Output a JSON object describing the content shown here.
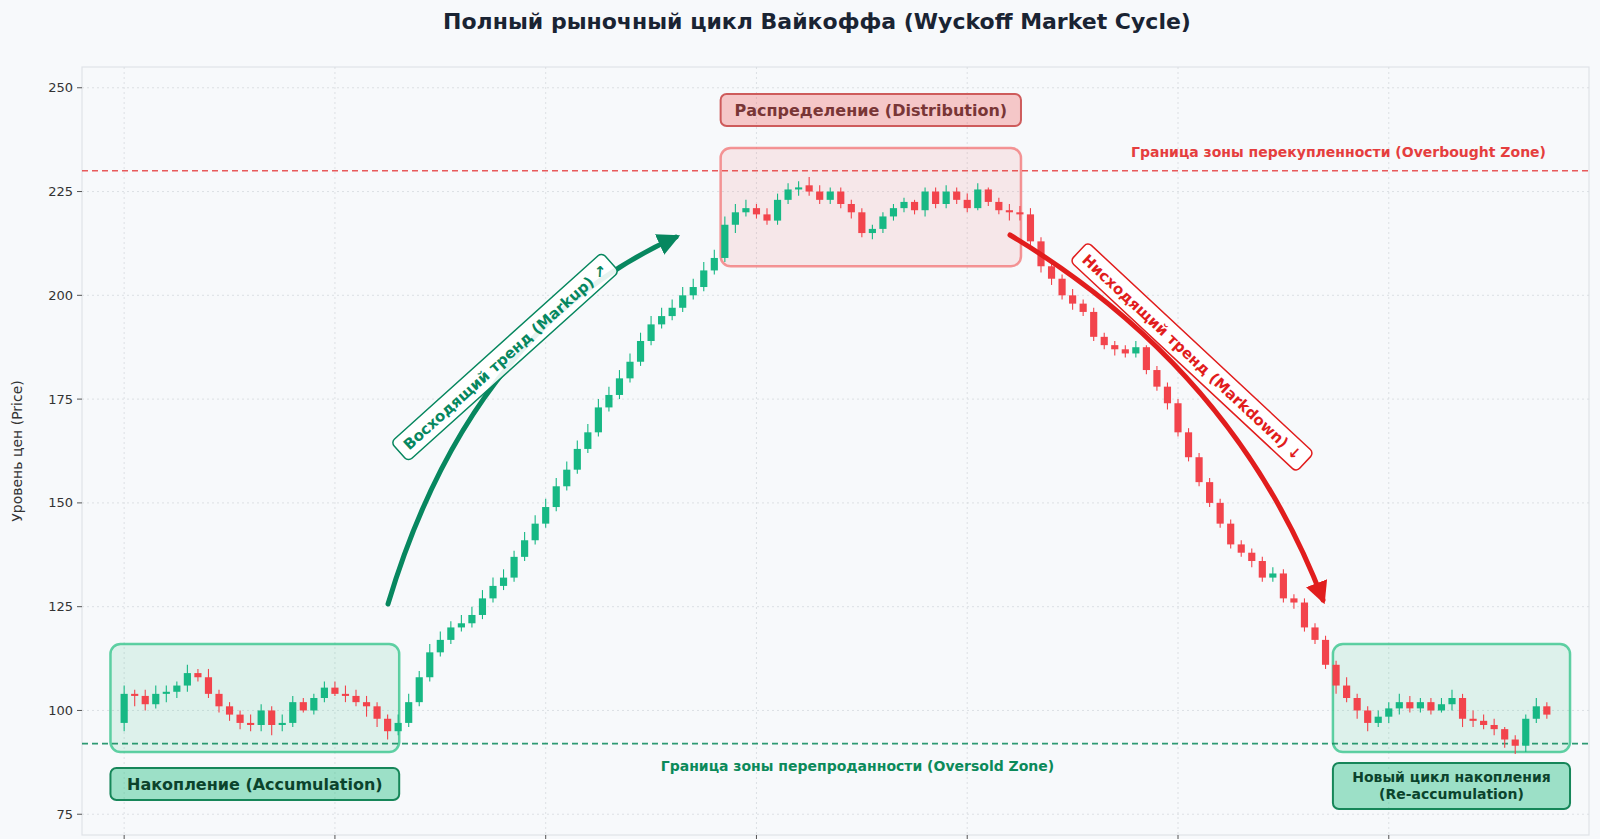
{
  "chart_data": {
    "type": "candlestick",
    "title": "Полный рыночный цикл Вайкоффа (Wyckoff Market Cycle)",
    "y_label": "Уровень цен (Price)",
    "xlim": [
      -4,
      139
    ],
    "ylim": [
      70,
      255
    ],
    "xticks": [
      0,
      20,
      40,
      60,
      80,
      100,
      120
    ],
    "yticks": [
      75,
      100,
      125,
      150,
      175,
      200,
      225,
      250
    ],
    "grid": true,
    "tick_labels": "y",
    "x": [
      0,
      1,
      2,
      3,
      4,
      5,
      6,
      7,
      8,
      9,
      10,
      11,
      12,
      13,
      14,
      15,
      16,
      17,
      18,
      19,
      20,
      21,
      22,
      23,
      24,
      25,
      26,
      27,
      28,
      29,
      30,
      31,
      32,
      33,
      34,
      35,
      36,
      37,
      38,
      39,
      40,
      41,
      42,
      43,
      44,
      45,
      46,
      47,
      48,
      49,
      50,
      51,
      52,
      53,
      54,
      55,
      56,
      57,
      58,
      59,
      60,
      61,
      62,
      63,
      64,
      65,
      66,
      67,
      68,
      69,
      70,
      71,
      72,
      73,
      74,
      75,
      76,
      77,
      78,
      79,
      80,
      81,
      82,
      83,
      84,
      85,
      86,
      87,
      88,
      89,
      90,
      91,
      92,
      93,
      94,
      95,
      96,
      97,
      98,
      99,
      100,
      101,
      102,
      103,
      104,
      105,
      106,
      107,
      108,
      109,
      110,
      111,
      112,
      113,
      114,
      115,
      116,
      117,
      118,
      119,
      120,
      121,
      122,
      123,
      124,
      125,
      126,
      127,
      128,
      129,
      130,
      131,
      132,
      133,
      134,
      135
    ],
    "open": [
      97,
      104,
      103.5,
      101.5,
      104,
      104.5,
      106,
      109,
      108,
      104,
      101,
      99,
      97,
      96.5,
      100,
      96.5,
      97,
      102,
      100,
      103,
      105.5,
      104,
      103.5,
      102,
      101,
      98,
      95,
      97,
      102,
      108,
      114,
      117,
      120,
      121,
      123,
      127,
      130,
      132,
      137,
      141,
      145,
      149,
      154,
      158,
      163,
      167,
      173,
      176,
      180,
      184,
      189,
      193,
      195,
      197,
      200,
      202,
      206,
      209,
      217,
      220,
      221,
      219.5,
      218,
      223,
      225.5,
      226.5,
      225,
      223,
      225,
      222,
      220,
      215,
      216,
      219,
      221,
      222.5,
      220.5,
      225,
      222,
      225,
      223,
      221,
      225.5,
      222.5,
      220.5,
      220,
      219.5,
      213,
      207,
      204,
      200,
      198,
      196,
      190,
      188,
      187,
      186,
      187.5,
      182,
      178,
      174,
      167,
      161,
      155,
      150,
      145,
      140,
      138,
      136,
      132,
      133,
      127,
      126,
      120,
      117,
      111,
      106,
      103,
      100,
      97,
      98.5,
      100.5,
      102,
      100.5,
      102,
      100,
      101.5,
      103,
      98,
      97.5,
      96.5,
      95.5,
      93,
      91.5,
      98,
      101
    ],
    "high": [
      106,
      105,
      105,
      106,
      106,
      107,
      111,
      110,
      110,
      105,
      102,
      100,
      99,
      101.5,
      101,
      99,
      103.5,
      103,
      104,
      107,
      107,
      106,
      105,
      103.5,
      102,
      99,
      99,
      104,
      109.5,
      116,
      119,
      121.5,
      123,
      125,
      129,
      132,
      134,
      138.5,
      143,
      147,
      151,
      156,
      160,
      165,
      169,
      175,
      178,
      182,
      186,
      191,
      195,
      197,
      199,
      202,
      204,
      208,
      211,
      219,
      222,
      223,
      222,
      221,
      224.5,
      227,
      227.5,
      228.5,
      226.5,
      226,
      226,
      223,
      221,
      217,
      220,
      222,
      223.5,
      223,
      226,
      226,
      226.5,
      226,
      224.5,
      227,
      226,
      223.5,
      222,
      221.5,
      221,
      214,
      208.5,
      205,
      201.5,
      199,
      197,
      191,
      189,
      188,
      189,
      188,
      183,
      179,
      175,
      168,
      162,
      156,
      151,
      146,
      141,
      139,
      137,
      134.5,
      134,
      128,
      127,
      121,
      118,
      112,
      108,
      104,
      101,
      100,
      102,
      104,
      103.5,
      103,
      103,
      103,
      105,
      104,
      100,
      99,
      98,
      96,
      94,
      99,
      103,
      102
    ],
    "low": [
      95,
      101,
      100,
      100.5,
      102,
      103,
      104.5,
      107,
      103,
      99.5,
      97.5,
      95.5,
      95,
      95,
      94,
      95,
      96,
      99.5,
      99,
      102,
      103.5,
      102,
      101,
      98.5,
      96,
      93,
      94,
      96,
      101,
      107,
      113,
      116,
      119,
      120,
      122,
      126,
      129,
      131,
      136,
      140,
      144,
      148,
      153,
      157,
      162,
      166,
      172,
      175,
      179,
      183,
      188,
      192,
      194,
      196,
      199,
      201,
      205,
      208,
      215,
      219,
      218.5,
      217,
      217,
      222,
      224,
      224,
      222,
      222,
      221,
      218.5,
      214,
      213.5,
      215,
      218,
      220,
      219.5,
      219,
      221,
      221,
      222,
      220,
      220.5,
      221.5,
      219.5,
      218,
      218,
      212,
      205.5,
      202.5,
      199,
      196.5,
      195,
      189,
      187,
      185.5,
      185,
      185,
      181,
      177,
      172.5,
      166,
      160,
      154,
      149,
      144,
      139,
      137,
      134.5,
      131,
      131,
      126,
      124.5,
      119,
      116,
      110,
      104,
      102,
      98,
      95,
      96,
      97,
      99,
      99.5,
      99.5,
      99,
      99.5,
      100,
      96,
      96,
      95.5,
      94,
      91,
      89.5,
      90,
      97,
      98
    ],
    "close": [
      104,
      103.5,
      101.5,
      104,
      104.5,
      106,
      109,
      108,
      104,
      101,
      99,
      97,
      96.5,
      100,
      96.5,
      97,
      102,
      100,
      103,
      105.5,
      104,
      103.5,
      102,
      101,
      98,
      95,
      97,
      102,
      108,
      114,
      117,
      120,
      121,
      123,
      127,
      130,
      132,
      137,
      141,
      145,
      149,
      154,
      158,
      163,
      167,
      173,
      176,
      180,
      184,
      189,
      193,
      195,
      197,
      200,
      202,
      206,
      209,
      217,
      220,
      221,
      219.5,
      218,
      223,
      225.5,
      226,
      225,
      223,
      225,
      222,
      220,
      215,
      216,
      219,
      221,
      222.5,
      220.5,
      225,
      222,
      225,
      223,
      221,
      225.5,
      222.5,
      220.5,
      220,
      219.5,
      213,
      207,
      204,
      200,
      198,
      196,
      190,
      188,
      187,
      186,
      187.5,
      182,
      178,
      174,
      167,
      161,
      155,
      150,
      145,
      140,
      138,
      136,
      132,
      133,
      127,
      126,
      120,
      117,
      111,
      106,
      103,
      100,
      97,
      98.5,
      100.5,
      102,
      100.5,
      102,
      100,
      101.5,
      103,
      98,
      97.5,
      96.5,
      95.5,
      93,
      91.5,
      98,
      101,
      99
    ],
    "reference_lines": [
      {
        "value": 230,
        "label": "Граница зоны перекупленности (Overbought Zone)",
        "color": "#e53e3e"
      },
      {
        "value": 92,
        "label": "Граница зоны перепроданности (Oversold Zone)",
        "color": "#0b8a5a"
      }
    ],
    "regions": [
      {
        "label": "Накопление (Accumulation)",
        "x": [
          -1.3,
          26.1
        ],
        "y": [
          90,
          116
        ],
        "color": "#1fbf7f"
      },
      {
        "label": "Распределение (Distribution)",
        "x": [
          56.6,
          85.1
        ],
        "y": [
          207,
          235.5
        ],
        "color": "#f26b6b"
      },
      {
        "label": [
          "Новый цикл накопления",
          "(Re-accumulation)"
        ],
        "x": [
          114.7,
          137.2
        ],
        "y": [
          90,
          116
        ],
        "color": "#1fbf7f"
      }
    ],
    "trends": [
      {
        "label": "Восходящий тренд (Markup) ↗",
        "color": "#07875f"
      },
      {
        "label": "Нисходящий тренд (Markdown) ↓",
        "color": "#e11d1d"
      }
    ]
  }
}
